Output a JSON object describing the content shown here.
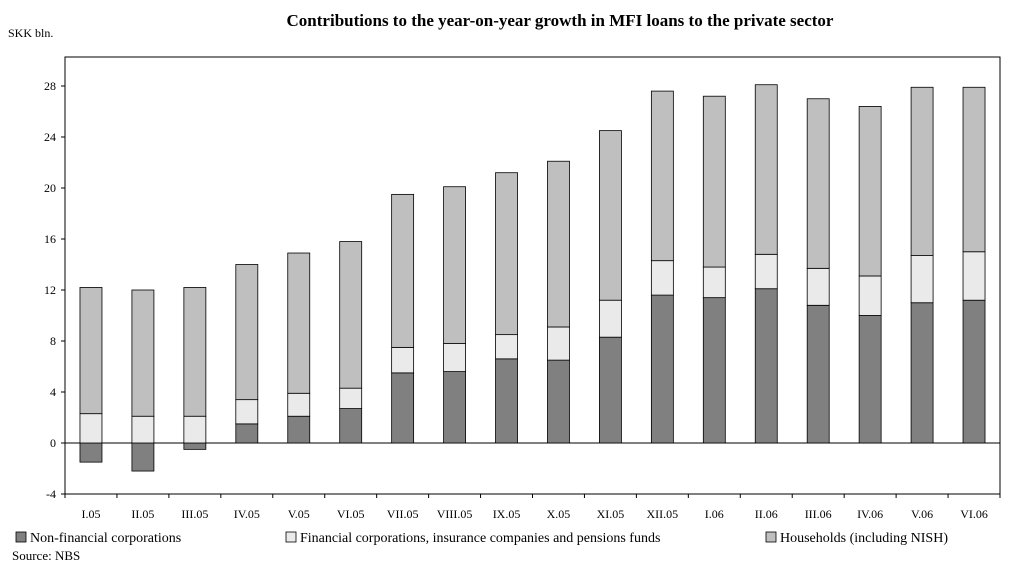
{
  "chart_data": {
    "type": "bar",
    "stacked": true,
    "title": "Contributions to the year-on-year growth in MFI loans to the private sector",
    "ylabel": "SKK bln.",
    "source": "Source: NBS",
    "ylim": [
      -4,
      30
    ],
    "yticks": [
      -4,
      0,
      4,
      8,
      12,
      16,
      20,
      24,
      28
    ],
    "grid": false,
    "legend_position": "bottom",
    "categories": [
      "I.05",
      "II.05",
      "III.05",
      "IV.05",
      "V.05",
      "VI.05",
      "VII.05",
      "VIII.05",
      "IX.05",
      "X.05",
      "XI.05",
      "XII.05",
      "I.06",
      "II.06",
      "III.06",
      "IV.06",
      "V.06",
      "VI.06"
    ],
    "series": [
      {
        "name": "Non-financial corporations",
        "color": "#808080",
        "values": [
          -1.5,
          -2.2,
          -0.5,
          1.5,
          2.1,
          2.7,
          5.5,
          5.6,
          6.6,
          6.5,
          8.3,
          11.6,
          11.4,
          12.1,
          10.8,
          10.0,
          11.0,
          11.2
        ]
      },
      {
        "name": "Financial corporations, insurance companies and pensions funds",
        "color": "#eaeaea",
        "values": [
          2.3,
          2.1,
          2.1,
          1.9,
          1.8,
          1.6,
          2.0,
          2.2,
          1.9,
          2.6,
          2.9,
          2.7,
          2.4,
          2.7,
          2.9,
          3.1,
          3.7,
          3.8
        ]
      },
      {
        "name": "Households (including NISH)",
        "color": "#bfbfbf",
        "values": [
          9.9,
          9.9,
          10.1,
          10.6,
          11.0,
          11.5,
          12.0,
          12.3,
          12.7,
          13.0,
          13.3,
          13.3,
          13.4,
          13.3,
          13.3,
          13.3,
          13.2,
          12.9
        ]
      }
    ]
  }
}
